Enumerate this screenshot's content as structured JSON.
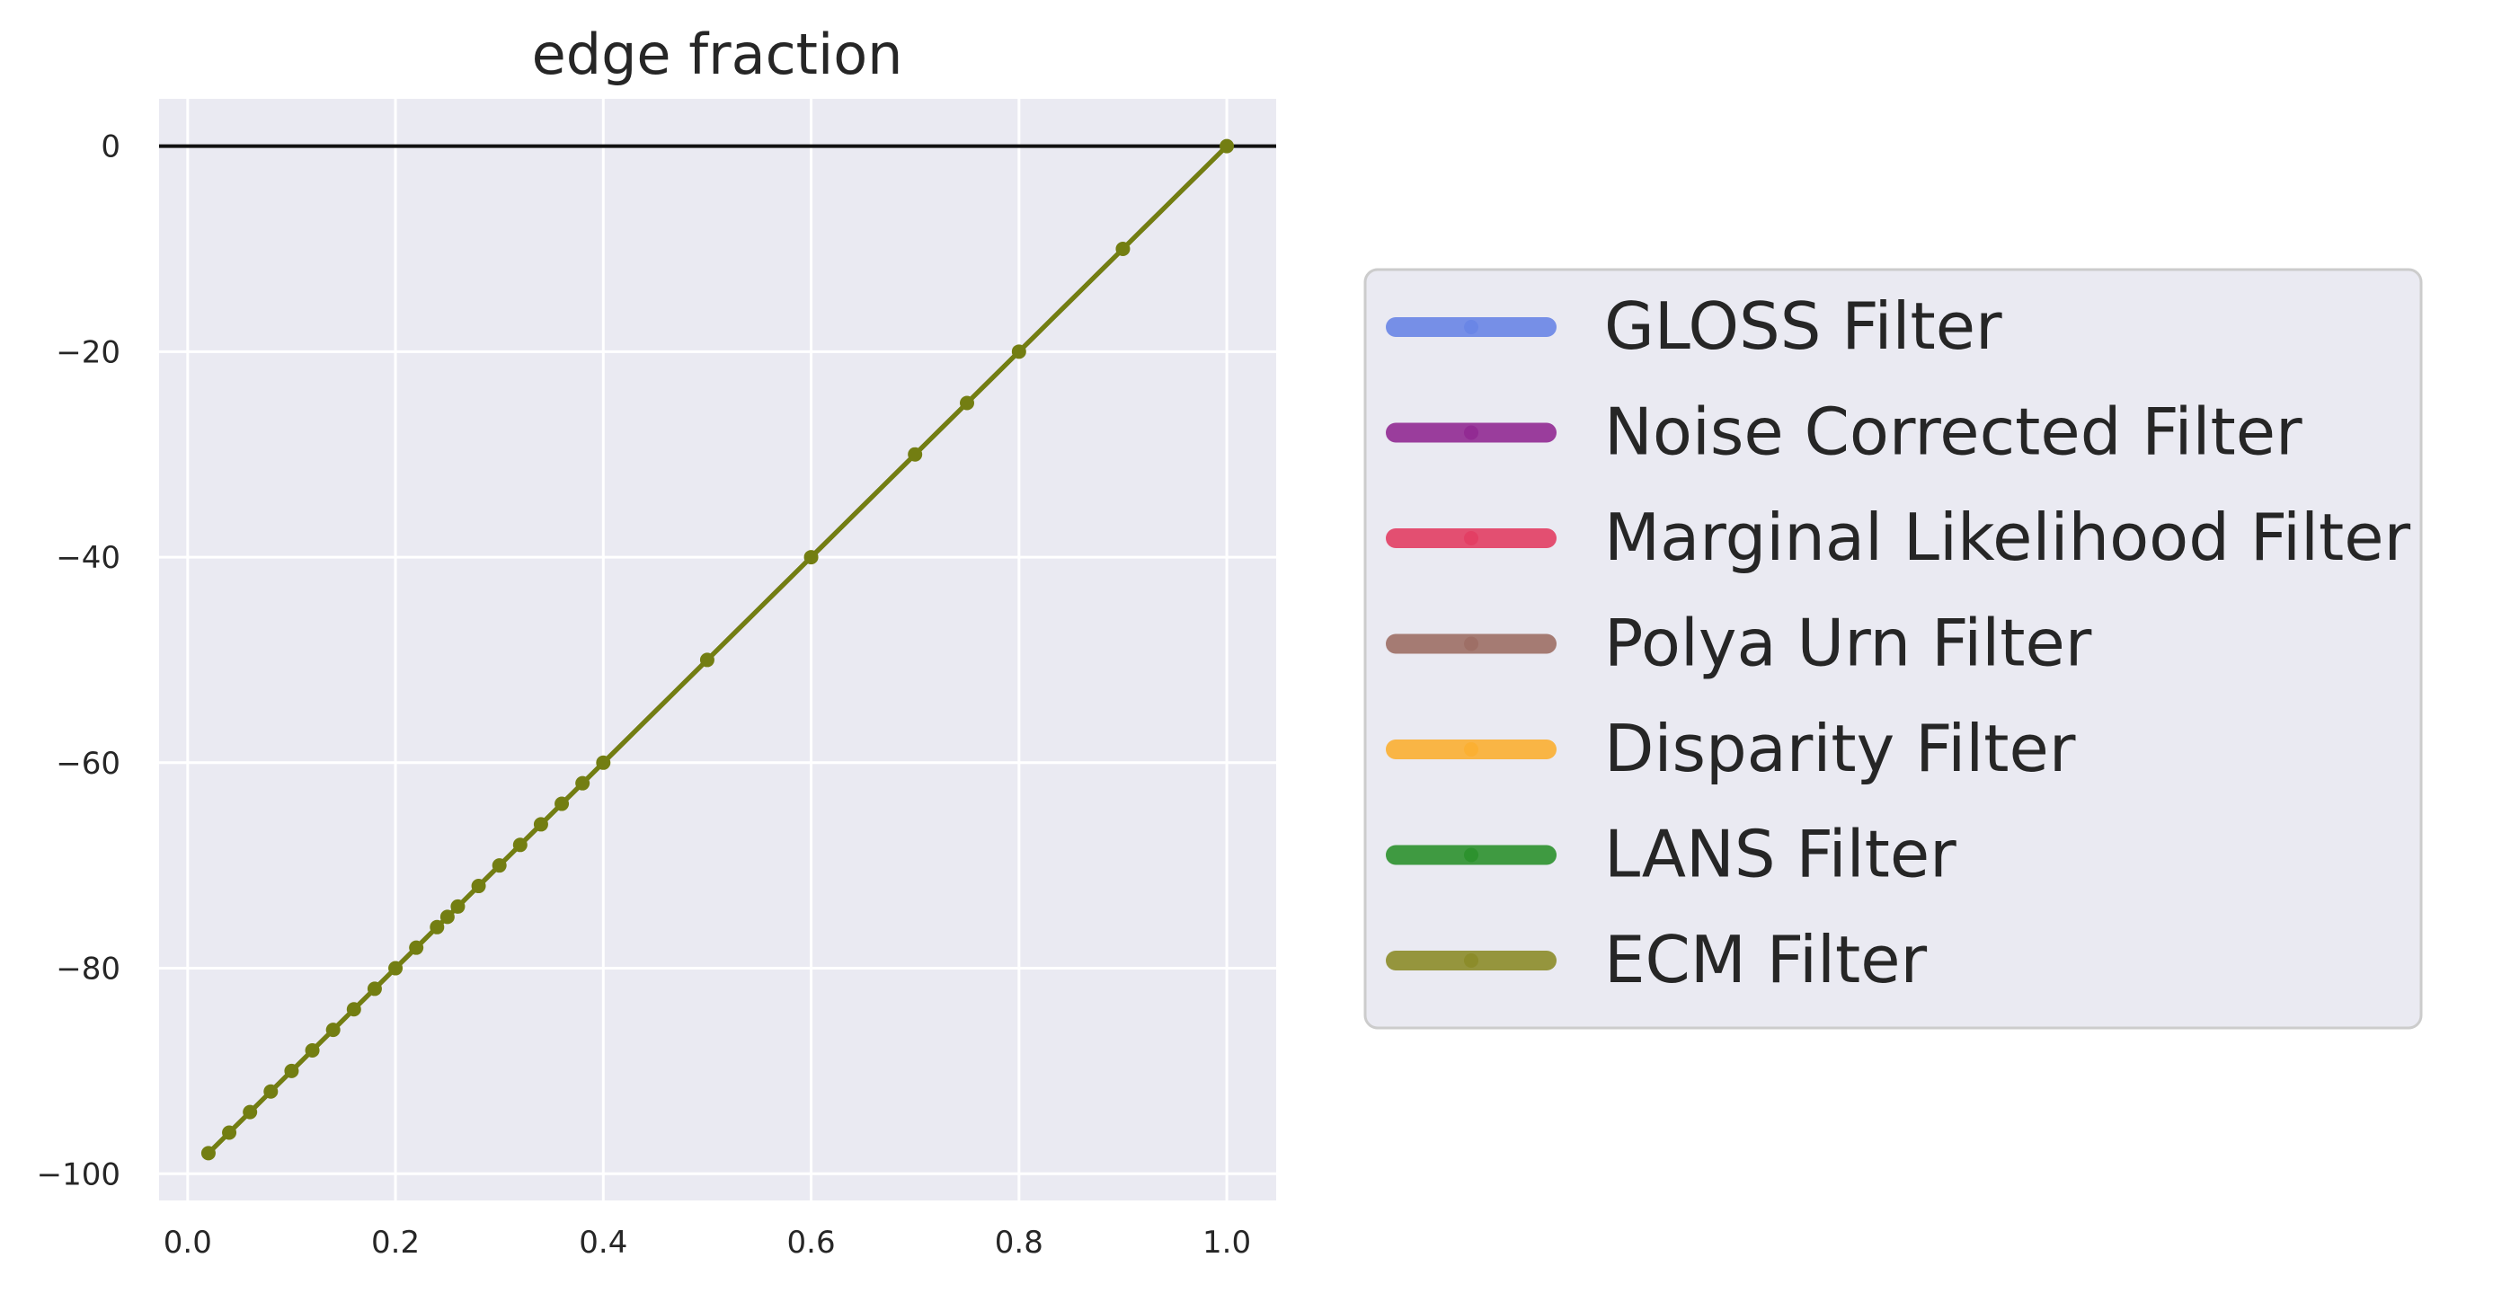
{
  "chart_data": {
    "type": "line",
    "title": "edge fraction",
    "xlabel": "",
    "ylabel": "",
    "xlim": [
      -0.0275,
      1.0475
    ],
    "ylim": [
      -102.6,
      4.6
    ],
    "x_ticks": [
      0.0,
      0.2,
      0.4,
      0.6,
      0.8,
      1.0
    ],
    "x_tick_labels": [
      "0.0",
      "0.2",
      "0.4",
      "0.6",
      "0.8",
      "1.0"
    ],
    "y_ticks": [
      0,
      -20,
      -40,
      -60,
      -80,
      -100
    ],
    "y_tick_labels": [
      "0",
      "−20",
      "−40",
      "−60",
      "−80",
      "−100"
    ],
    "grid": true,
    "reference_line": {
      "y": 0,
      "color": "#111111"
    },
    "legend_position": "right, outside plot",
    "x": [
      0.02,
      0.04,
      0.06,
      0.08,
      0.1,
      0.12,
      0.14,
      0.16,
      0.18,
      0.2,
      0.22,
      0.24,
      0.25,
      0.26,
      0.28,
      0.3,
      0.32,
      0.34,
      0.36,
      0.38,
      0.4,
      0.5,
      0.6,
      0.7,
      0.75,
      0.8,
      0.9,
      1.0
    ],
    "series": [
      {
        "name": "GLOSS Filter",
        "color": "#6a86e6",
        "values": [
          -98,
          -96,
          -94,
          -92,
          -90,
          -88,
          -86,
          -84,
          -82,
          -80,
          -78,
          -76,
          -75,
          -74,
          -72,
          -70,
          -68,
          -66,
          -64,
          -62,
          -60,
          -50,
          -40,
          -30,
          -25,
          -20,
          -10,
          0
        ]
      },
      {
        "name": "Noise Corrected Filter",
        "color": "#922b93",
        "values": [
          -98,
          -96,
          -94,
          -92,
          -90,
          -88,
          -86,
          -84,
          -82,
          -80,
          -78,
          -76,
          -75,
          -74,
          -72,
          -70,
          -68,
          -66,
          -64,
          -62,
          -60,
          -50,
          -40,
          -30,
          -25,
          -20,
          -10,
          0
        ]
      },
      {
        "name": "Marginal Likelihood Filter",
        "color": "#e33f64",
        "values": [
          -98,
          -96,
          -94,
          -92,
          -90,
          -88,
          -86,
          -84,
          -82,
          -80,
          -78,
          -76,
          -75,
          -74,
          -72,
          -70,
          -68,
          -66,
          -64,
          -62,
          -60,
          -50,
          -40,
          -30,
          -25,
          -20,
          -10,
          0
        ]
      },
      {
        "name": "Polya Urn Filter",
        "color": "#9e6f66",
        "values": [
          -98,
          -96,
          -94,
          -92,
          -90,
          -88,
          -86,
          -84,
          -82,
          -80,
          -78,
          -76,
          -75,
          -74,
          -72,
          -70,
          -68,
          -66,
          -64,
          -62,
          -60,
          -50,
          -40,
          -30,
          -25,
          -20,
          -10,
          0
        ]
      },
      {
        "name": "Disparity Filter",
        "color": "#fbb033",
        "values": [
          -98,
          -96,
          -94,
          -92,
          -90,
          -88,
          -86,
          -84,
          -82,
          -80,
          -78,
          -76,
          -75,
          -74,
          -72,
          -70,
          -68,
          -66,
          -64,
          -62,
          -60,
          -50,
          -40,
          -30,
          -25,
          -20,
          -10,
          0
        ]
      },
      {
        "name": "LANS Filter",
        "color": "#2d922e",
        "values": [
          -98,
          -96,
          -94,
          -92,
          -90,
          -88,
          -86,
          -84,
          -82,
          -80,
          -78,
          -76,
          -75,
          -74,
          -72,
          -70,
          -68,
          -66,
          -64,
          -62,
          -60,
          -50,
          -40,
          -30,
          -25,
          -20,
          -10,
          0
        ]
      },
      {
        "name": "ECM Filter",
        "color": "#8c8c2a",
        "values": [
          -98,
          -96,
          -94,
          -92,
          -90,
          -88,
          -86,
          -84,
          -82,
          -80,
          -78,
          -76,
          -75,
          -74,
          -72,
          -70,
          -68,
          -66,
          -64,
          -62,
          -60,
          -50,
          -40,
          -30,
          -25,
          -20,
          -10,
          0
        ]
      }
    ]
  },
  "colors": {
    "plot_background": "#eaeaf2",
    "grid": "#ffffff",
    "visible_line": "#737e12",
    "legend_background": "#eaeaf2",
    "legend_border": "#cccccc"
  }
}
